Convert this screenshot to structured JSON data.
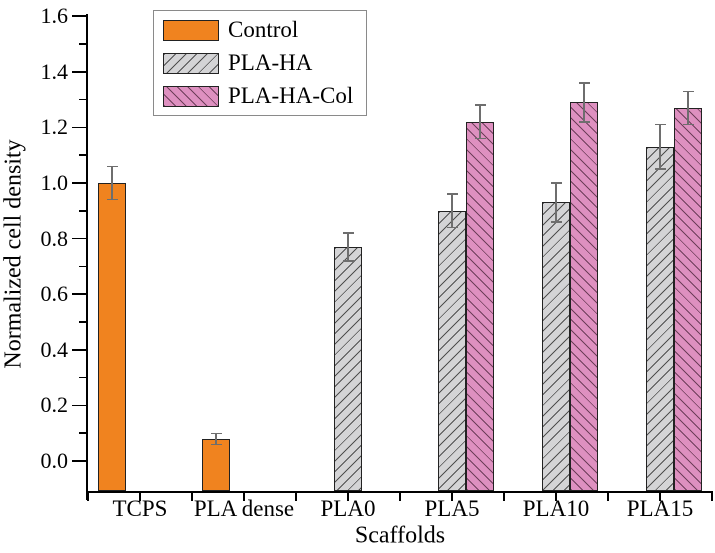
{
  "chart_data": {
    "type": "bar",
    "title": "",
    "xlabel": "Scaffolds",
    "ylabel": "Normalized cell density",
    "categories": [
      "TCPS",
      "PLA dense",
      "PLA0",
      "PLA5",
      "PLA10",
      "PLA15"
    ],
    "ylim": [
      -0.11,
      1.6
    ],
    "y_major_tick_step": 0.2,
    "y_minor_tick_step": 0.1,
    "y_tick_labels": [
      "0.0",
      "0.2",
      "0.4",
      "0.6",
      "0.8",
      "1.0",
      "1.2",
      "1.4",
      "1.6"
    ],
    "grid": false,
    "legend_position": "top-left-inside",
    "series": [
      {
        "name": "Control",
        "slot": 0,
        "fill": "#F0831F",
        "hatch": "none",
        "hatch_color": "",
        "values": [
          1.0,
          0.08,
          null,
          null,
          null,
          null
        ],
        "errors": [
          0.06,
          0.02,
          null,
          null,
          null,
          null
        ]
      },
      {
        "name": "PLA-HA",
        "slot": 1,
        "fill": "#D4D4D6",
        "hatch": "forward",
        "hatch_color": "#4F4F4F",
        "values": [
          null,
          null,
          0.77,
          0.9,
          0.93,
          1.13
        ],
        "errors": [
          null,
          null,
          0.05,
          0.06,
          0.07,
          0.08
        ]
      },
      {
        "name": "PLA-HA-Col",
        "slot": 2,
        "fill": "#DE90C0",
        "hatch": "back",
        "hatch_color": "#6E3E5A",
        "values": [
          null,
          null,
          null,
          1.22,
          1.29,
          1.27
        ],
        "errors": [
          null,
          null,
          null,
          0.06,
          0.07,
          0.06
        ]
      }
    ],
    "error_bar_color": "#6E6E6E",
    "axis_color": "#000000"
  }
}
